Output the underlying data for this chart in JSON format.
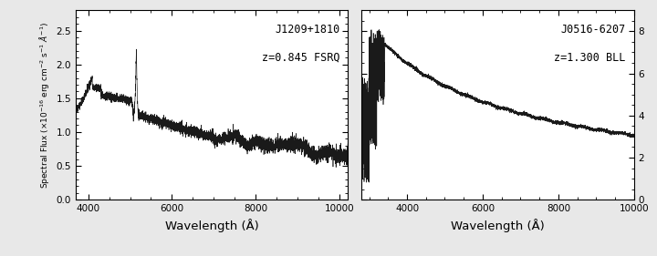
{
  "left_panel": {
    "label": "J1209+1810",
    "redshift_label": "z=0.845 FSRQ",
    "xlim": [
      3700,
      10200
    ],
    "ylim": [
      0,
      2.8
    ],
    "yticks": [
      0,
      0.5,
      1,
      1.5,
      2,
      2.5
    ],
    "xticks": [
      4000,
      6000,
      8000,
      10000
    ],
    "xlabel": "Wavelength (Å)",
    "ylabel": "Spectral Flux (×10⁻¹⁶ erg cm⁻² s⁻¹ Å⁻¹)"
  },
  "right_panel": {
    "label": "J0516-6207",
    "redshift_label": "z=1.300 BLL",
    "xlim": [
      2800,
      10000
    ],
    "ylim": [
      0,
      9
    ],
    "yticks": [
      0,
      2,
      4,
      6,
      8
    ],
    "xticks": [
      4000,
      6000,
      8000,
      10000
    ],
    "xlabel": "Wavelength (Å)"
  },
  "line_color": "#1a1a1a",
  "background_color": "#e8e8e8",
  "panel_bg": "#ffffff",
  "label_fontsize": 8.5,
  "tick_labelsize": 7.5,
  "xlabel_fontsize": 9.5,
  "ylabel_fontsize": 6.5
}
